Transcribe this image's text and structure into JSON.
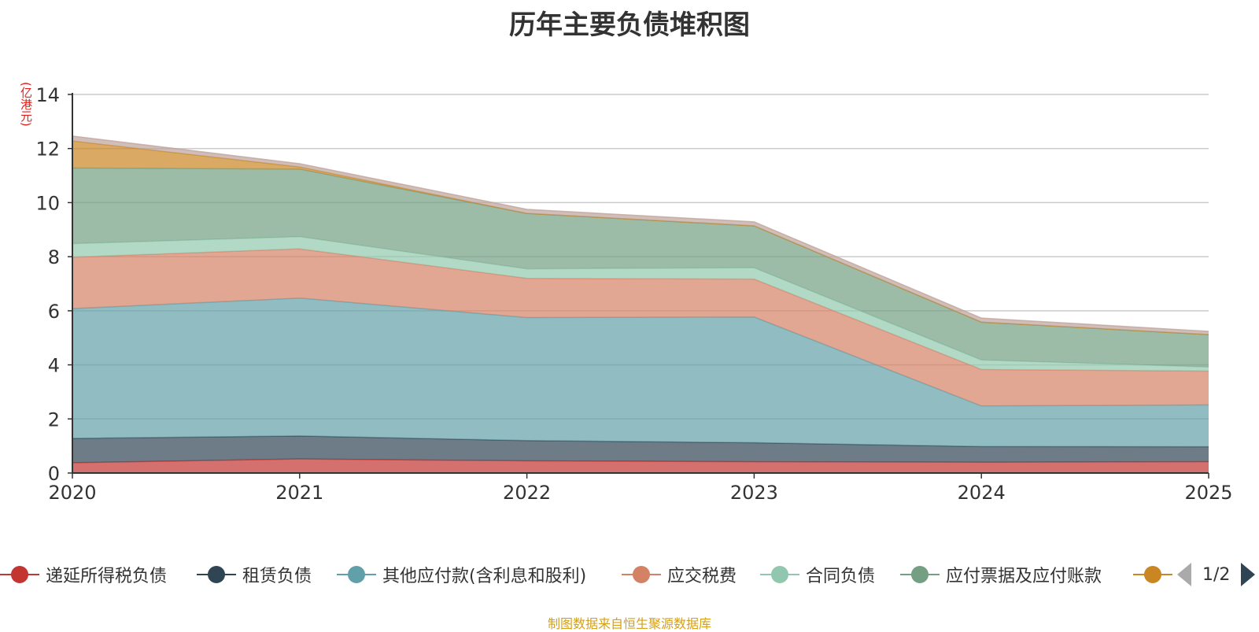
{
  "chart_data": {
    "type": "area",
    "stacked": true,
    "title": "历年主要负债堆积图",
    "ylabel": "(亿港元)",
    "ylim": [
      0,
      14
    ],
    "yticks": [
      0,
      2,
      4,
      6,
      8,
      10,
      12,
      14
    ],
    "categories": [
      "2020",
      "2021",
      "2022",
      "2023",
      "2024",
      "2025"
    ],
    "grid": true,
    "legend_position": "bottom",
    "series": [
      {
        "name": "递延所得税负债",
        "color": "#c23531",
        "values": [
          0.38,
          0.52,
          0.45,
          0.42,
          0.4,
          0.42
        ]
      },
      {
        "name": "租赁负债",
        "color": "#2f4554",
        "values": [
          0.9,
          0.85,
          0.75,
          0.7,
          0.58,
          0.55
        ]
      },
      {
        "name": "其他应付款(含利息和股利)",
        "color": "#61a0a8",
        "values": [
          4.8,
          5.1,
          4.55,
          4.65,
          1.5,
          1.55
        ]
      },
      {
        "name": "应交税费",
        "color": "#d48265",
        "values": [
          1.9,
          1.82,
          1.45,
          1.4,
          1.35,
          1.25
        ]
      },
      {
        "name": "合同负债",
        "color": "#91c7ae",
        "values": [
          0.5,
          0.45,
          0.35,
          0.42,
          0.35,
          0.15
        ]
      },
      {
        "name": "应付票据及应付账款",
        "color": "#749f83",
        "values": [
          2.8,
          2.5,
          2.05,
          1.55,
          1.4,
          1.2
        ]
      },
      {
        "name": "",
        "color": "#ca8622",
        "values": [
          1.0,
          0.08,
          0.0,
          0.0,
          0.0,
          0.0
        ]
      },
      {
        "name": "",
        "color": "#bda29a",
        "values": [
          0.18,
          0.12,
          0.15,
          0.15,
          0.15,
          0.12
        ]
      }
    ],
    "legend_page": "1/2",
    "source": "制图数据来自恒生聚源数据库"
  }
}
